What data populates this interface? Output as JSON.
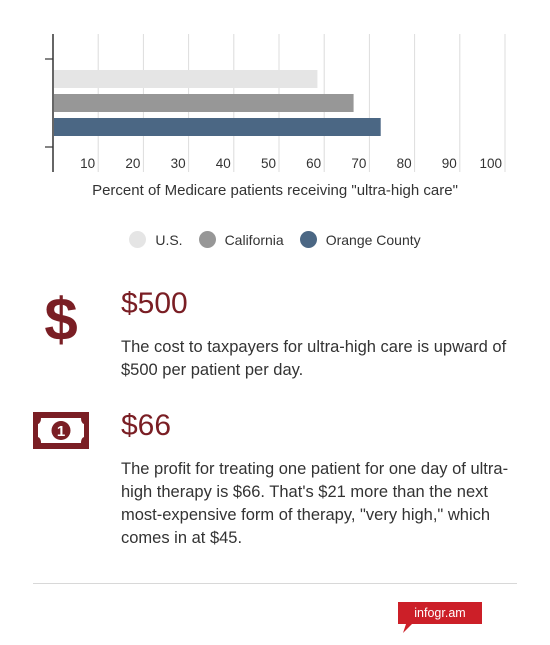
{
  "chart_data": {
    "type": "bar",
    "orientation": "horizontal",
    "xlabel": "Percent of Medicare patients receiving \"ultra-high care\"",
    "xlim": [
      0,
      100
    ],
    "xticks": [
      10,
      20,
      30,
      40,
      50,
      60,
      70,
      80,
      90,
      100
    ],
    "grid": true,
    "legend_placement": "bottom",
    "series": [
      {
        "name": "U.S.",
        "value": 58.5,
        "color": "#e5e5e5"
      },
      {
        "name": "California",
        "value": 66.5,
        "color": "#979797"
      },
      {
        "name": "Orange County",
        "value": 72.5,
        "color": "#4b6784"
      }
    ]
  },
  "stats": [
    {
      "icon": "dollar-sign-icon",
      "amount": "$500",
      "description": "The cost to taxpayers for ultra-high care is upward of $500 per patient per day."
    },
    {
      "icon": "banknote-icon",
      "amount": "$66",
      "description": "The profit for treating one patient for one day of ultra-high therapy is $66. That's $21 more than the next most-expensive form of therapy, \"very high,\" which comes in at $45."
    }
  ],
  "brand": {
    "label": "infogr.am",
    "color": "#cc1f28"
  },
  "accent_color": "#7a1e24"
}
